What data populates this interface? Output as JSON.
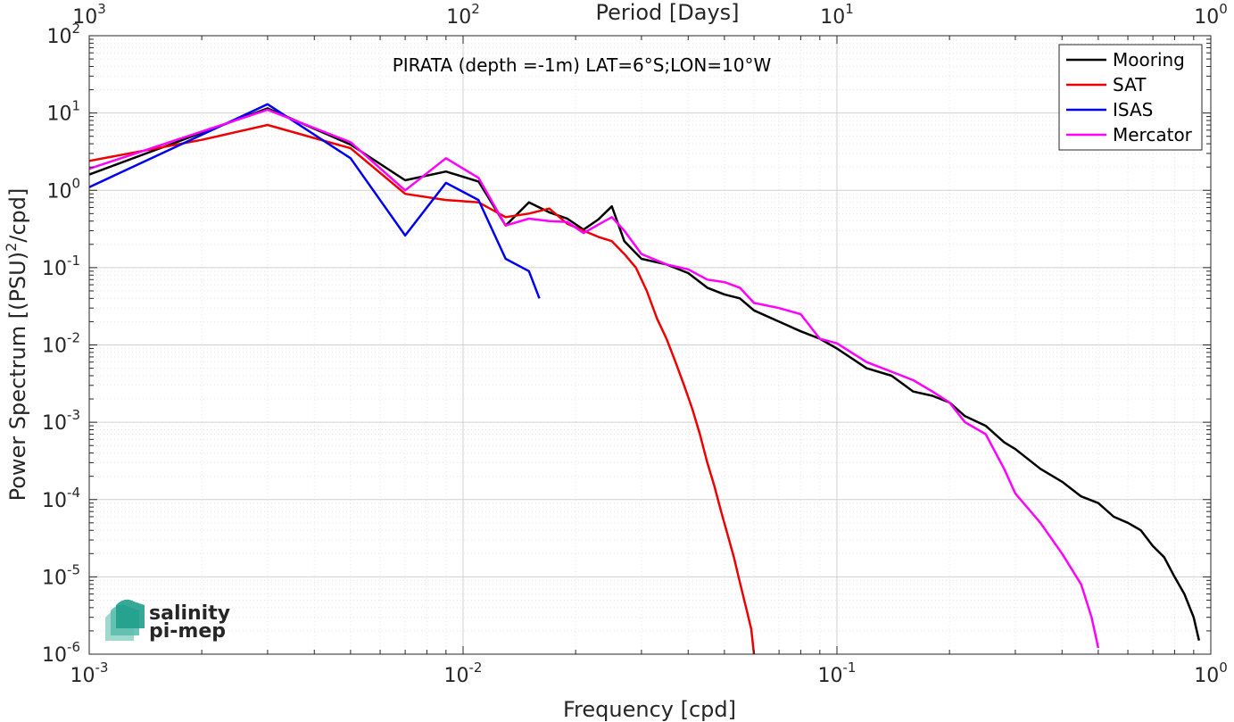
{
  "chart_data": {
    "type": "line",
    "title": "PIRATA (depth =-1m) LAT=6°S;LON=10°W",
    "xlabel": "Frequency [cpd]",
    "ylabel_parts": [
      "Power Spectrum [(PSU)",
      "2",
      "/cpd]"
    ],
    "top_xlabel": "Period [Days]",
    "xscale": "log",
    "yscale": "log",
    "xlim": [
      0.001,
      1
    ],
    "ylim": [
      1e-06,
      100
    ],
    "x_ticks": [
      0.001,
      0.01,
      0.1,
      1
    ],
    "x_tick_labels": [
      [
        "10",
        "-3"
      ],
      [
        "10",
        "-2"
      ],
      [
        "10",
        "-1"
      ],
      [
        "10",
        "0"
      ]
    ],
    "y_ticks": [
      1e-06,
      1e-05,
      0.0001,
      0.001,
      0.01,
      0.1,
      1,
      10,
      100
    ],
    "y_tick_labels": [
      [
        "10",
        "-6"
      ],
      [
        "10",
        "-5"
      ],
      [
        "10",
        "-4"
      ],
      [
        "10",
        "-3"
      ],
      [
        "10",
        "-2"
      ],
      [
        "10",
        "-1"
      ],
      [
        "10",
        "0"
      ],
      [
        "10",
        "1"
      ],
      [
        "10",
        "2"
      ]
    ],
    "top_ticks_period_days": [
      1000,
      100,
      10,
      1
    ],
    "top_tick_labels": [
      [
        "10",
        "3"
      ],
      [
        "10",
        "2"
      ],
      [
        "10",
        "1"
      ],
      [
        "10",
        "0"
      ]
    ],
    "grid": true,
    "legend_position": "top-right",
    "series": [
      {
        "name": "Mooring",
        "color": "#000000",
        "x": [
          0.001,
          0.003,
          0.005,
          0.007,
          0.009,
          0.011,
          0.013,
          0.015,
          0.017,
          0.019,
          0.021,
          0.023,
          0.025,
          0.027,
          0.03,
          0.035,
          0.04,
          0.045,
          0.05,
          0.055,
          0.06,
          0.07,
          0.08,
          0.09,
          0.1,
          0.12,
          0.14,
          0.16,
          0.18,
          0.2,
          0.22,
          0.25,
          0.28,
          0.3,
          0.35,
          0.4,
          0.45,
          0.5,
          0.55,
          0.6,
          0.65,
          0.7,
          0.75,
          0.8,
          0.85,
          0.9,
          0.93
        ],
        "y": [
          1.6,
          11.5,
          3.9,
          1.35,
          1.75,
          1.3,
          0.35,
          0.7,
          0.52,
          0.43,
          0.31,
          0.42,
          0.62,
          0.22,
          0.13,
          0.11,
          0.085,
          0.055,
          0.045,
          0.04,
          0.028,
          0.02,
          0.015,
          0.012,
          0.009,
          0.005,
          0.004,
          0.0025,
          0.0022,
          0.0018,
          0.0012,
          0.0009,
          0.00055,
          0.00045,
          0.00025,
          0.00017,
          0.00011,
          9e-05,
          6e-05,
          5e-05,
          4e-05,
          2.5e-05,
          1.8e-05,
          1e-05,
          6e-06,
          3e-06,
          1.5e-06
        ]
      },
      {
        "name": "SAT",
        "color": "#ee0000",
        "x": [
          0.001,
          0.002,
          0.003,
          0.005,
          0.007,
          0.009,
          0.011,
          0.013,
          0.015,
          0.017,
          0.019,
          0.021,
          0.023,
          0.025,
          0.027,
          0.029,
          0.031,
          0.033,
          0.035,
          0.037,
          0.039,
          0.041,
          0.043,
          0.045,
          0.047,
          0.049,
          0.051,
          0.053,
          0.055,
          0.057,
          0.059,
          0.06
        ],
        "y": [
          2.4,
          4.5,
          7.0,
          3.5,
          0.9,
          0.75,
          0.7,
          0.45,
          0.5,
          0.58,
          0.37,
          0.3,
          0.25,
          0.22,
          0.15,
          0.1,
          0.05,
          0.022,
          0.012,
          0.006,
          0.003,
          0.0015,
          0.0007,
          0.0003,
          0.00015,
          7e-05,
          3.5e-05,
          1.8e-05,
          8.5e-06,
          4.2e-06,
          2.1e-06,
          1e-06
        ]
      },
      {
        "name": "ISAS",
        "color": "#0000ee",
        "x": [
          0.001,
          0.003,
          0.005,
          0.007,
          0.009,
          0.011,
          0.013,
          0.015,
          0.016
        ],
        "y": [
          1.1,
          13.0,
          2.6,
          0.26,
          1.25,
          0.75,
          0.13,
          0.09,
          0.04
        ]
      },
      {
        "name": "Mercator",
        "color": "#ff00ff",
        "x": [
          0.001,
          0.003,
          0.005,
          0.007,
          0.009,
          0.011,
          0.013,
          0.015,
          0.017,
          0.019,
          0.021,
          0.023,
          0.025,
          0.027,
          0.03,
          0.035,
          0.04,
          0.045,
          0.05,
          0.055,
          0.06,
          0.07,
          0.08,
          0.09,
          0.1,
          0.12,
          0.14,
          0.16,
          0.18,
          0.2,
          0.22,
          0.25,
          0.28,
          0.3,
          0.35,
          0.4,
          0.45,
          0.48,
          0.5
        ],
        "y": [
          1.9,
          11.0,
          4.2,
          1.0,
          2.6,
          1.45,
          0.35,
          0.43,
          0.4,
          0.39,
          0.28,
          0.36,
          0.45,
          0.3,
          0.15,
          0.11,
          0.095,
          0.07,
          0.065,
          0.055,
          0.035,
          0.03,
          0.025,
          0.012,
          0.0105,
          0.006,
          0.0045,
          0.0035,
          0.0025,
          0.0018,
          0.001,
          0.0007,
          0.00025,
          0.00012,
          5e-05,
          2e-05,
          8e-06,
          3e-06,
          1.2e-06
        ]
      }
    ]
  },
  "logo": {
    "line1": "salinity",
    "line2": "pi-mep"
  }
}
